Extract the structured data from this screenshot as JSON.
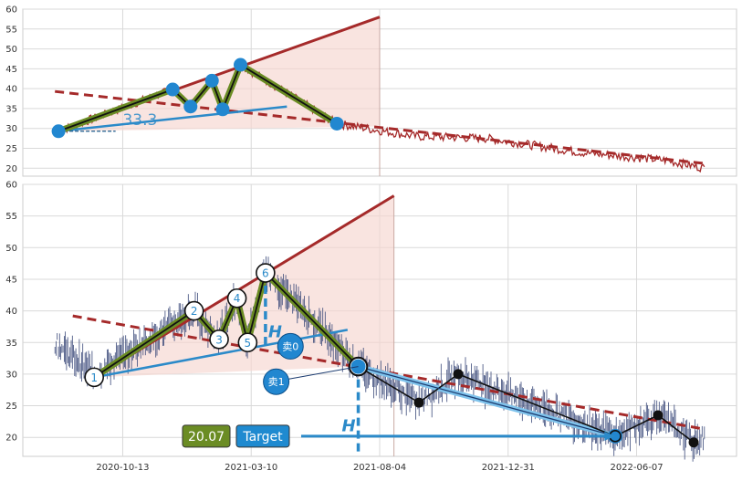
{
  "chart_data": [
    {
      "type": "line",
      "panel": "top",
      "ylim": [
        18,
        60
      ],
      "yticks": [
        "20",
        "25",
        "30",
        "35",
        "40",
        "45",
        "50",
        "55",
        "60"
      ],
      "grid": true,
      "pattern_label": "33.3",
      "zigzag": [
        {
          "t": 0.05,
          "y": 29.3
        },
        {
          "t": 0.21,
          "y": 39.8
        },
        {
          "t": 0.235,
          "y": 35.5
        },
        {
          "t": 0.265,
          "y": 42.0
        },
        {
          "t": 0.28,
          "y": 34.8
        },
        {
          "t": 0.305,
          "y": 46.0
        },
        {
          "t": 0.44,
          "y": 31.2
        }
      ]
    },
    {
      "type": "line",
      "panel": "bottom",
      "ylim": [
        17,
        60
      ],
      "yticks": [
        "20",
        "25",
        "30",
        "35",
        "40",
        "45",
        "50",
        "55",
        "60"
      ],
      "xticks": [
        "2020-10-13",
        "2021-03-10",
        "2021-08-04",
        "2021-12-31",
        "2022-06-07"
      ],
      "grid": true,
      "wave_points": [
        {
          "label": "1",
          "t": 0.1,
          "y": 29.5
        },
        {
          "label": "2",
          "t": 0.24,
          "y": 40.0
        },
        {
          "label": "3",
          "t": 0.275,
          "y": 35.5
        },
        {
          "label": "4",
          "t": 0.3,
          "y": 42.0
        },
        {
          "label": "5",
          "t": 0.315,
          "y": 35.0
        },
        {
          "label": "6",
          "t": 0.34,
          "y": 46.0
        },
        {
          "label": "",
          "t": 0.47,
          "y": 31.2
        }
      ],
      "forecast_points": [
        {
          "t": 0.47,
          "y": 31.2
        },
        {
          "t": 0.555,
          "y": 25.5
        },
        {
          "t": 0.61,
          "y": 30.0
        },
        {
          "t": 0.83,
          "y": 20.2
        },
        {
          "t": 0.89,
          "y": 23.5
        },
        {
          "t": 0.94,
          "y": 19.2
        }
      ],
      "signals": [
        "卖0",
        "卖1"
      ],
      "h_marker": "H",
      "target_value": "20.07",
      "target_label": "Target"
    }
  ],
  "colors": {
    "price_line": "#a52a2a",
    "trend_red": "#a52a2a",
    "trend_blue": "#2b8ac9",
    "zigzag_green": "#6b8c24",
    "wedge_fill": "#f6d6d0",
    "target_box_green": "#6b8c24",
    "target_box_blue": "#1f8ad0",
    "marker_blue": "#2287d0"
  }
}
